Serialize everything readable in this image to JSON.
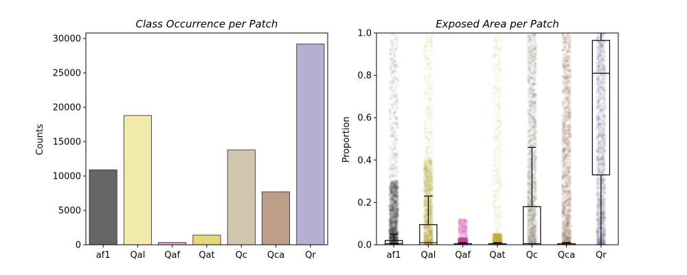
{
  "chart_data": [
    {
      "type": "bar",
      "title": "Class Occurrence per Patch",
      "xlabel": "",
      "ylabel": "Counts",
      "ylim": [
        0,
        30800
      ],
      "yticks": [
        0,
        5000,
        10000,
        15000,
        20000,
        25000,
        30000
      ],
      "categories": [
        "af1",
        "Qal",
        "Qaf",
        "Qat",
        "Qc",
        "Qca",
        "Qr"
      ],
      "values": [
        10900,
        18800,
        330,
        1400,
        13800,
        7700,
        29200
      ],
      "colors": [
        "#666666",
        "#f2eaab",
        "#ee9fd4",
        "#e5d77a",
        "#d2c6af",
        "#bd9f89",
        "#b3b0d1"
      ],
      "grid": false
    },
    {
      "type": "box",
      "title": "Exposed Area per Patch",
      "xlabel": "",
      "ylabel": "Proportion",
      "ylim": [
        0,
        1.0
      ],
      "yticks": [
        0.0,
        0.2,
        0.4,
        0.6,
        0.8,
        1.0
      ],
      "categories": [
        "af1",
        "Qal",
        "Qaf",
        "Qat",
        "Qc",
        "Qca",
        "Qr"
      ],
      "boxes": [
        {
          "q1": 0.0,
          "median": 0.005,
          "q3": 0.02,
          "whisker_low": 0.0,
          "whisker_high": 0.05
        },
        {
          "q1": 0.0,
          "median": 0.01,
          "q3": 0.095,
          "whisker_low": 0.0,
          "whisker_high": 0.23
        },
        {
          "q1": 0.0,
          "median": 0.0,
          "q3": 0.005,
          "whisker_low": 0.0,
          "whisker_high": 0.01
        },
        {
          "q1": 0.0,
          "median": 0.0,
          "q3": 0.005,
          "whisker_low": 0.0,
          "whisker_high": 0.01
        },
        {
          "q1": 0.0,
          "median": 0.005,
          "q3": 0.18,
          "whisker_low": 0.0,
          "whisker_high": 0.46
        },
        {
          "q1": 0.0,
          "median": 0.0,
          "q3": 0.005,
          "whisker_low": 0.0,
          "whisker_high": 0.01
        },
        {
          "q1": 0.33,
          "median": 0.81,
          "q3": 0.965,
          "whisker_low": 0.0,
          "whisker_high": 1.0
        }
      ],
      "strip_colors": [
        "#333333",
        "#b5a830",
        "#d64fa8",
        "#c9b840",
        "#7d7060",
        "#8a5e46",
        "#6a6a8a"
      ],
      "strip_ranges": [
        {
          "min": 0.0,
          "max": 1.0,
          "dense_max": 0.3
        },
        {
          "min": 0.0,
          "max": 1.0,
          "dense_max": 0.4
        },
        {
          "min": 0.0,
          "max": 0.12,
          "dense_max": 0.03
        },
        {
          "min": 0.0,
          "max": 1.0,
          "dense_max": 0.05
        },
        {
          "min": 0.0,
          "max": 1.0,
          "dense_max": 1.0
        },
        {
          "min": 0.0,
          "max": 1.0,
          "dense_max": 1.0
        },
        {
          "min": 0.0,
          "max": 1.0,
          "dense_max": 1.0
        }
      ],
      "grid": false
    }
  ]
}
